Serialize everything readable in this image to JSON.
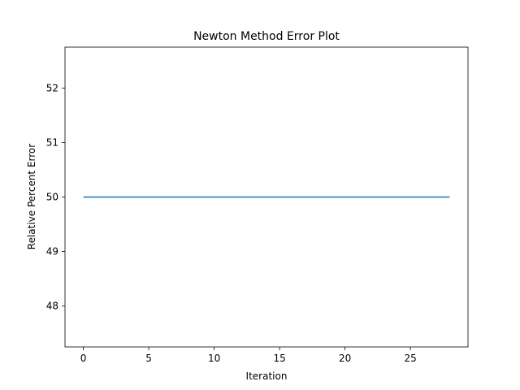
{
  "chart_data": {
    "type": "line",
    "title": "Newton Method Error Plot",
    "xlabel": "Iteration",
    "ylabel": "Relative Percent Error",
    "xlim": [
      -1.4,
      29.4
    ],
    "ylim": [
      47.25,
      52.75
    ],
    "xticks": [
      0,
      5,
      10,
      15,
      20,
      25
    ],
    "yticks": [
      48,
      49,
      50,
      51,
      52
    ],
    "grid": false,
    "series": [
      {
        "color": "#1f77b4",
        "x": [
          0,
          28
        ],
        "y": [
          50.0,
          50.0
        ]
      }
    ]
  }
}
